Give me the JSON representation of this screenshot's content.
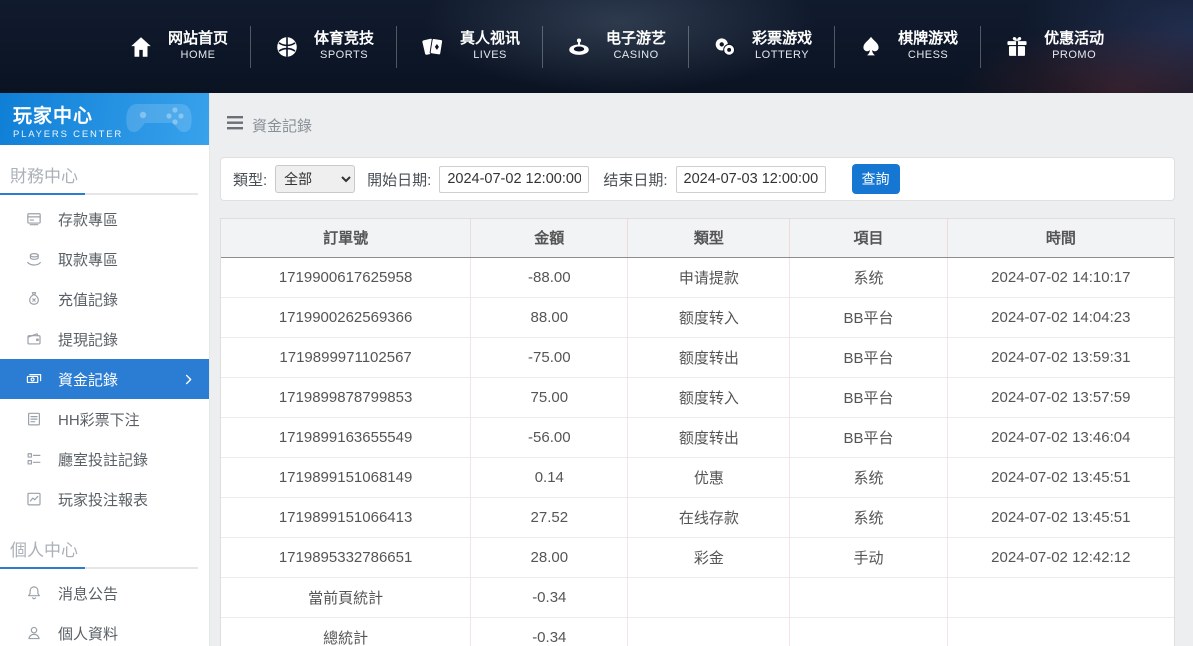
{
  "nav": {
    "items": [
      {
        "icon": "home-icon",
        "label": "网站首页",
        "sub": "HOME"
      },
      {
        "icon": "sports-ball-icon",
        "label": "体育竞技",
        "sub": "SPORTS"
      },
      {
        "icon": "playing-cards-icon",
        "label": "真人视讯",
        "sub": "LIVES"
      },
      {
        "icon": "roulette-icon",
        "label": "电子游艺",
        "sub": "CASINO"
      },
      {
        "icon": "lottery-balls-icon",
        "label": "彩票游戏",
        "sub": "LOTTERY"
      },
      {
        "icon": "spade-icon",
        "label": "棋牌游戏",
        "sub": "CHESS"
      },
      {
        "icon": "gift-icon",
        "label": "优惠活动",
        "sub": "PROMO"
      }
    ]
  },
  "sidebar": {
    "title": "玩家中心",
    "subtitle": "PLAYERS CENTER",
    "sections": [
      {
        "header": "財務中心",
        "items": [
          {
            "icon": "deposit-card-icon",
            "label": "存款專區",
            "active": false
          },
          {
            "icon": "withdraw-hand-icon",
            "label": "取款專區",
            "active": false
          },
          {
            "icon": "money-bag-icon",
            "label": "充值記錄",
            "active": false
          },
          {
            "icon": "wallet-icon",
            "label": "提現記錄",
            "active": false
          },
          {
            "icon": "banknotes-icon",
            "label": "資金記錄",
            "active": true
          },
          {
            "icon": "document-list-icon",
            "label": "HH彩票下注",
            "active": false
          },
          {
            "icon": "checklist-icon",
            "label": "廳室投註記錄",
            "active": false
          },
          {
            "icon": "chart-report-icon",
            "label": "玩家投注報表",
            "active": false
          }
        ]
      },
      {
        "header": "個人中心",
        "items": [
          {
            "icon": "bell-icon",
            "label": "消息公告",
            "active": false
          },
          {
            "icon": "person-icon",
            "label": "個人資料",
            "active": false
          }
        ]
      }
    ]
  },
  "breadcrumb": {
    "title": "資金記錄"
  },
  "filters": {
    "type_label": "類型:",
    "type_value": "全部",
    "start_label": "開始日期:",
    "start_value": "2024-07-02 12:00:00",
    "end_label": "结束日期:",
    "end_value": "2024-07-03 12:00:00",
    "search_button": "查詢"
  },
  "table": {
    "columns": [
      "訂單號",
      "金額",
      "類型",
      "項目",
      "時間"
    ],
    "rows": [
      [
        "1719900617625958",
        "-88.00",
        "申请提款",
        "系统",
        "2024-07-02 14:10:17"
      ],
      [
        "1719900262569366",
        "88.00",
        "额度转入",
        "BB平台",
        "2024-07-02 14:04:23"
      ],
      [
        "1719899971102567",
        "-75.00",
        "额度转出",
        "BB平台",
        "2024-07-02 13:59:31"
      ],
      [
        "1719899878799853",
        "75.00",
        "额度转入",
        "BB平台",
        "2024-07-02 13:57:59"
      ],
      [
        "1719899163655549",
        "-56.00",
        "额度转出",
        "BB平台",
        "2024-07-02 13:46:04"
      ],
      [
        "1719899151068149",
        "0.14",
        "优惠",
        "系统",
        "2024-07-02 13:45:51"
      ],
      [
        "1719899151066413",
        "27.52",
        "在线存款",
        "系统",
        "2024-07-02 13:45:51"
      ],
      [
        "1719895332786651",
        "28.00",
        "彩金",
        "手动",
        "2024-07-02 12:42:12"
      ]
    ],
    "summary_rows": [
      [
        "當前頁統計",
        "-0.34",
        "",
        "",
        ""
      ],
      [
        "總統計",
        "-0.34",
        "",
        "",
        ""
      ]
    ]
  },
  "colors": {
    "accent_blue": "#2a7dd2",
    "button_blue": "#1677d2",
    "sidebar_header_blue": "#1b8ddd",
    "nav_background": "#0b1424",
    "page_background": "#eceef0",
    "table_header_bg": "#f1f3f5"
  }
}
